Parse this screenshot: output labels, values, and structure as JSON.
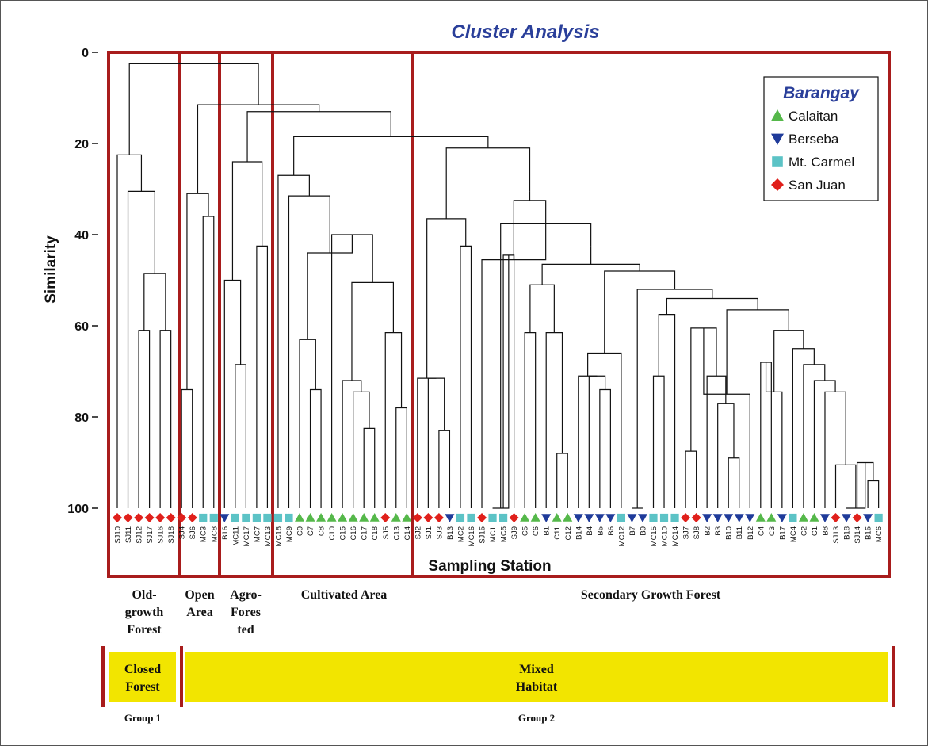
{
  "chart_data": {
    "type": "dendrogram",
    "title": "Cluster Analysis",
    "xlabel": "Sampling Station",
    "ylabel": "Similarity",
    "ylim": [
      0,
      100
    ],
    "yticks": [
      "0",
      "20",
      "40",
      "60",
      "80",
      "100"
    ],
    "legend": {
      "title": "Barangay",
      "placement": "top-right",
      "entries": [
        {
          "name": "Calaitan",
          "marker": "triangle-up",
          "color": "#55b84a"
        },
        {
          "name": "Berseba",
          "marker": "triangle-down",
          "color": "#1f3b9a"
        },
        {
          "name": "Mt. Carmel",
          "marker": "square",
          "color": "#5cc3c6"
        },
        {
          "name": "San Juan",
          "marker": "diamond",
          "color": "#e0201b"
        }
      ]
    },
    "leaves": [
      {
        "label": "SJ10",
        "barangay": "San Juan"
      },
      {
        "label": "SJ11",
        "barangay": "San Juan"
      },
      {
        "label": "SJ12",
        "barangay": "San Juan"
      },
      {
        "label": "SJ17",
        "barangay": "San Juan"
      },
      {
        "label": "SJ16",
        "barangay": "San Juan"
      },
      {
        "label": "SJ18",
        "barangay": "San Juan"
      },
      {
        "label": "SJ4",
        "barangay": "San Juan"
      },
      {
        "label": "SJ6",
        "barangay": "San Juan"
      },
      {
        "label": "MC3",
        "barangay": "Mt. Carmel"
      },
      {
        "label": "MC8",
        "barangay": "Mt. Carmel"
      },
      {
        "label": "B16",
        "barangay": "Berseba"
      },
      {
        "label": "MC11",
        "barangay": "Mt. Carmel"
      },
      {
        "label": "MC17",
        "barangay": "Mt. Carmel"
      },
      {
        "label": "MC7",
        "barangay": "Mt. Carmel"
      },
      {
        "label": "MC13",
        "barangay": "Mt. Carmel"
      },
      {
        "label": "MC18",
        "barangay": "Mt. Carmel"
      },
      {
        "label": "MC9",
        "barangay": "Mt. Carmel"
      },
      {
        "label": "C9",
        "barangay": "Calaitan"
      },
      {
        "label": "C7",
        "barangay": "Calaitan"
      },
      {
        "label": "C8",
        "barangay": "Calaitan"
      },
      {
        "label": "C10",
        "barangay": "Calaitan"
      },
      {
        "label": "C15",
        "barangay": "Calaitan"
      },
      {
        "label": "C16",
        "barangay": "Calaitan"
      },
      {
        "label": "C17",
        "barangay": "Calaitan"
      },
      {
        "label": "C18",
        "barangay": "Calaitan"
      },
      {
        "label": "SJ5",
        "barangay": "San Juan"
      },
      {
        "label": "C13",
        "barangay": "Calaitan"
      },
      {
        "label": "C14",
        "barangay": "Calaitan"
      },
      {
        "label": "SJ2",
        "barangay": "San Juan"
      },
      {
        "label": "SJ1",
        "barangay": "San Juan"
      },
      {
        "label": "SJ3",
        "barangay": "San Juan"
      },
      {
        "label": "B13",
        "barangay": "Berseba"
      },
      {
        "label": "MC2",
        "barangay": "Mt. Carmel"
      },
      {
        "label": "MC16",
        "barangay": "Mt. Carmel"
      },
      {
        "label": "SJ15",
        "barangay": "San Juan"
      },
      {
        "label": "MC1",
        "barangay": "Mt. Carmel"
      },
      {
        "label": "MC5",
        "barangay": "Mt. Carmel"
      },
      {
        "label": "SJ9",
        "barangay": "San Juan"
      },
      {
        "label": "C5",
        "barangay": "Calaitan"
      },
      {
        "label": "C6",
        "barangay": "Calaitan"
      },
      {
        "label": "B1",
        "barangay": "Berseba"
      },
      {
        "label": "C11",
        "barangay": "Calaitan"
      },
      {
        "label": "C12",
        "barangay": "Calaitan"
      },
      {
        "label": "B14",
        "barangay": "Berseba"
      },
      {
        "label": "B4",
        "barangay": "Berseba"
      },
      {
        "label": "B5",
        "barangay": "Berseba"
      },
      {
        "label": "B6",
        "barangay": "Berseba"
      },
      {
        "label": "MC12",
        "barangay": "Mt. Carmel"
      },
      {
        "label": "B7",
        "barangay": "Berseba"
      },
      {
        "label": "B9",
        "barangay": "Berseba"
      },
      {
        "label": "MC15",
        "barangay": "Mt. Carmel"
      },
      {
        "label": "MC10",
        "barangay": "Mt. Carmel"
      },
      {
        "label": "MC14",
        "barangay": "Mt. Carmel"
      },
      {
        "label": "SJ7",
        "barangay": "San Juan"
      },
      {
        "label": "SJ8",
        "barangay": "San Juan"
      },
      {
        "label": "B2",
        "barangay": "Berseba"
      },
      {
        "label": "B3",
        "barangay": "Berseba"
      },
      {
        "label": "B10",
        "barangay": "Berseba"
      },
      {
        "label": "B11",
        "barangay": "Berseba"
      },
      {
        "label": "B12",
        "barangay": "Berseba"
      },
      {
        "label": "C4",
        "barangay": "Calaitan"
      },
      {
        "label": "C3",
        "barangay": "Calaitan"
      },
      {
        "label": "B17",
        "barangay": "Berseba"
      },
      {
        "label": "MC4",
        "barangay": "Mt. Carmel"
      },
      {
        "label": "C2",
        "barangay": "Calaitan"
      },
      {
        "label": "C1",
        "barangay": "Calaitan"
      },
      {
        "label": "B8",
        "barangay": "Berseba"
      },
      {
        "label": "SJ13",
        "barangay": "San Juan"
      },
      {
        "label": "B18",
        "barangay": "Berseba"
      },
      {
        "label": "SJ14",
        "barangay": "San Juan"
      },
      {
        "label": "B15",
        "barangay": "Berseba"
      },
      {
        "label": "MC6",
        "barangay": "Mt. Carmel"
      }
    ],
    "merges": [
      [
        0,
        1,
        100
      ],
      [
        2,
        3,
        61
      ],
      [
        4,
        5,
        61
      ],
      [
        72,
        73,
        48.5
      ],
      [
        71,
        74,
        30.5
      ],
      [
        70,
        75,
        22.5
      ],
      [
        8,
        9,
        36
      ],
      [
        7,
        77,
        31
      ],
      [
        6,
        78,
        74
      ],
      [
        11,
        12,
        68.5
      ],
      [
        13,
        14,
        42.5
      ],
      [
        10,
        80,
        50
      ],
      [
        82,
        81,
        24
      ],
      [
        18,
        19,
        74
      ],
      [
        17,
        84,
        63
      ],
      [
        22,
        23,
        82.5
      ],
      [
        21,
        86,
        74.5
      ],
      [
        20,
        87,
        72
      ],
      [
        26,
        27,
        78
      ],
      [
        25,
        89,
        61.5
      ],
      [
        88,
        90,
        50.5
      ],
      [
        91,
        16,
        40
      ],
      [
        85,
        92,
        31.5
      ],
      [
        93,
        15,
        27
      ],
      [
        30,
        31,
        83
      ],
      [
        29,
        32,
        71.5
      ],
      [
        33,
        34,
        42.5
      ],
      [
        33,
        34,
        42.5
      ],
      [
        95,
        96,
        36.5
      ],
      [
        36,
        37,
        100
      ],
      [
        38,
        39,
        44.5
      ],
      [
        99,
        100,
        30.5
      ],
      [
        97,
        101,
        21
      ],
      [
        35,
        98,
        45.5
      ],
      [
        42,
        43,
        88
      ],
      [
        41,
        105,
        61.5
      ],
      [
        40,
        106,
        61.5
      ],
      [
        107,
        108,
        51
      ],
      [
        109,
        48,
        71
      ],
      [
        46,
        47,
        74
      ],
      [
        45,
        112,
        71
      ],
      [
        113,
        111,
        52
      ],
      [
        48,
        49,
        66
      ],
      [
        114,
        115,
        52
      ],
      [
        51,
        52,
        71
      ],
      [
        53,
        54,
        57.5
      ],
      [
        56,
        57,
        89
      ],
      [
        58,
        59,
        77
      ],
      [
        60,
        121,
        71
      ],
      [
        120,
        55,
        87.5
      ],
      [
        61,
        62,
        75
      ],
      [
        123,
        122,
        60.5
      ],
      [
        119,
        124,
        57.5
      ],
      [
        125,
        126,
        54
      ],
      [
        64,
        65,
        68
      ],
      [
        63,
        128,
        74.5
      ],
      [
        70,
        71,
        100
      ],
      [
        69,
        130,
        90
      ],
      [
        68,
        131,
        90.5
      ],
      [
        67,
        132,
        74.5
      ],
      [
        66,
        133,
        72
      ],
      [
        134,
        129,
        68.5
      ],
      [
        120,
        118,
        47
      ],
      [
        116,
        137,
        48
      ],
      [
        138,
        127,
        52
      ],
      [
        139,
        104,
        42.5
      ],
      [
        110,
        140,
        42.5
      ],
      [
        103,
        141,
        37.5
      ],
      [
        102,
        142,
        32.5
      ]
    ],
    "habitats": [
      {
        "name": "Old-growth Forest",
        "lines": [
          "Old-",
          "growth",
          "Forest"
        ]
      },
      {
        "name": "Open Area",
        "lines": [
          "Open",
          "Area"
        ]
      },
      {
        "name": "Agro-Forested",
        "lines": [
          "Agro-",
          "Fores",
          "ted"
        ]
      },
      {
        "name": "Cultivated Area",
        "lines": [
          "Cultivated Area"
        ]
      },
      {
        "name": "Secondary Growth Forest",
        "lines": [
          "Secondary Growth Forest"
        ]
      }
    ],
    "groups": [
      {
        "band_lines": [
          "Closed",
          "Forest"
        ],
        "group_label": "Group 1"
      },
      {
        "band_lines": [
          "Mixed",
          "Habitat"
        ],
        "group_label": "Group 2"
      }
    ]
  }
}
